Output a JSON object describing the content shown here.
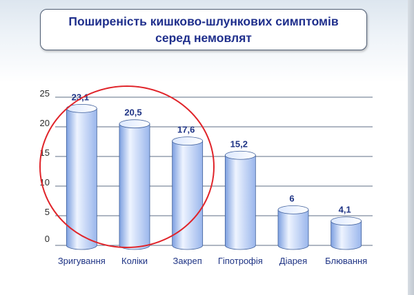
{
  "title": "Поширеність кишково-шлункових симптомів серед немовлят",
  "chart_data": {
    "type": "bar",
    "title": "Поширеність кишково-шлункових симптомів серед немовлят",
    "categories": [
      "Зригування",
      "Коліки",
      "Закреп",
      "Гіпотрофія",
      "Діарея",
      "Блювання"
    ],
    "values": [
      23.1,
      20.5,
      17.6,
      15.2,
      6,
      4.1
    ],
    "data_labels": [
      "23,1",
      "20,5",
      "17,6",
      "15,2",
      "6",
      "4,1"
    ],
    "yticks": [
      0,
      5,
      10,
      15,
      20,
      25
    ],
    "ylim": [
      0,
      25
    ],
    "xlabel": "",
    "ylabel": "",
    "grid": true,
    "legend": "none",
    "bar_color": "#a9c3f1",
    "highlight_color": "#e0242a"
  }
}
